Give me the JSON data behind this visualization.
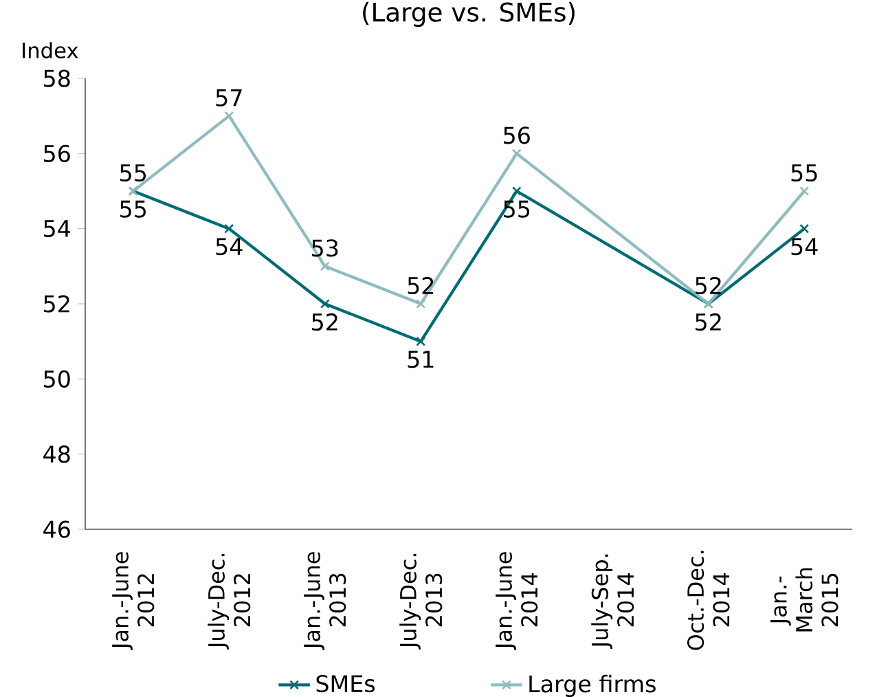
{
  "chart_data": {
    "type": "line",
    "title": "(Large vs. SMEs)",
    "ylabel": "Index",
    "categories": [
      "Jan.-June 2012",
      "July-Dec. 2012",
      "Jan.-June 2013",
      "July-Dec. 2013",
      "Jan.-June 2014",
      "July-Sep. 2014",
      "Oct.-Dec. 2014",
      "Jan.-March 2015"
    ],
    "series": [
      {
        "name": "SMEs",
        "color": "#006b73",
        "values": [
          55,
          54,
          52,
          51,
          55,
          null,
          52,
          54
        ]
      },
      {
        "name": "Large firms",
        "color": "#8fbcc1",
        "values": [
          55,
          57,
          53,
          52,
          56,
          null,
          52,
          55
        ]
      }
    ],
    "ylim": [
      46,
      58
    ],
    "yticks": [
      46,
      48,
      50,
      52,
      54,
      56,
      58
    ],
    "grid": false,
    "legend": "bottom",
    "marker": "cross",
    "data_labels": true
  }
}
